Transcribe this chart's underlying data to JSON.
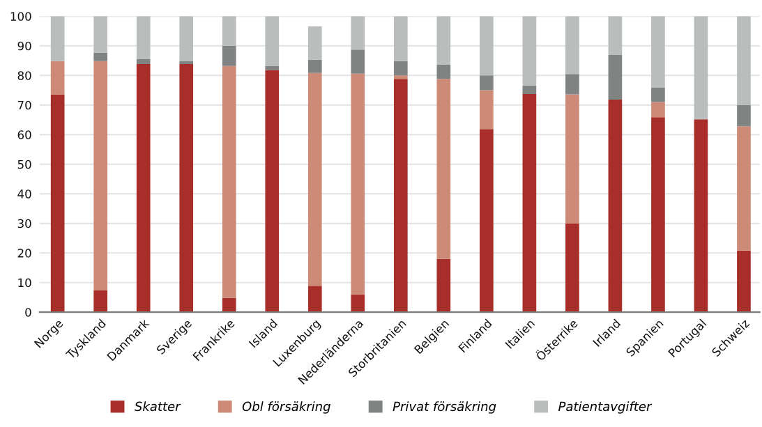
{
  "chart_data": {
    "type": "bar",
    "stacked": true,
    "categories": [
      "Norge",
      "Tyskland",
      "Danmark",
      "Sverige",
      "Frankrike",
      "Island",
      "Luxenburg",
      "Nederländerna",
      "Storbritanien",
      "Belgien",
      "Finland",
      "Italien",
      "Österrike",
      "Irland",
      "Spanien",
      "Portugal",
      "Schweiz"
    ],
    "series": [
      {
        "name": "Skatter",
        "color": "#a82e29",
        "values": [
          73.6,
          7.3,
          83.8,
          83.8,
          4.8,
          81.8,
          8.9,
          5.9,
          78.8,
          18.0,
          61.9,
          73.7,
          29.9,
          71.8,
          65.9,
          65.2,
          20.8
        ]
      },
      {
        "name": "Obl försäkring",
        "color": "#cd8b77",
        "values": [
          11.2,
          77.5,
          null,
          null,
          78.4,
          null,
          71.9,
          74.7,
          1.2,
          60.8,
          13.1,
          null,
          43.7,
          null,
          5.1,
          null,
          42.0
        ]
      },
      {
        "name": "Privat försäkring",
        "color": "#7f8382",
        "values": [
          null,
          2.9,
          1.7,
          1.1,
          6.8,
          1.3,
          4.5,
          8.1,
          4.8,
          4.8,
          5.0,
          2.9,
          6.9,
          15.1,
          4.8,
          null,
          7.2
        ]
      },
      {
        "name": "Patientavgifter",
        "color": "#b9bebd",
        "values": [
          15.2,
          12.3,
          14.5,
          15.1,
          10.0,
          16.9,
          11.3,
          11.3,
          15.2,
          16.4,
          20.0,
          23.4,
          19.5,
          13.1,
          24.2,
          34.8,
          30.0
        ]
      }
    ],
    "ylim": [
      0,
      100
    ],
    "yticks": [
      0,
      10,
      20,
      30,
      40,
      50,
      60,
      70,
      80,
      90,
      100
    ],
    "grid": "y",
    "legend": "bottom"
  }
}
